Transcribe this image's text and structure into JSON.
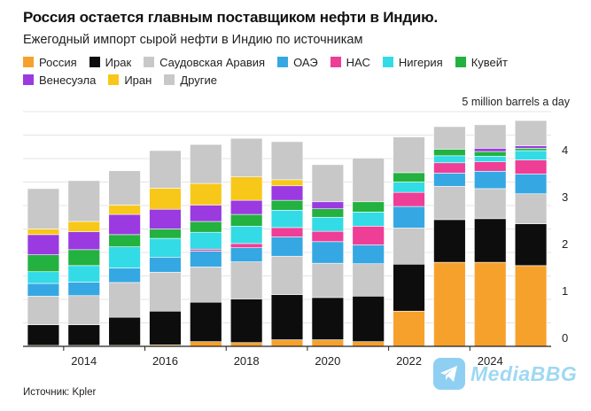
{
  "chart_data": {
    "type": "stacked_bar",
    "title": "Россия остается главным поставщиком нефти в Индию.",
    "subtitle": "Ежегодный импорт сырой нефти в Индию по источникам",
    "unit_label": "5 million barrels a day",
    "ylim": [
      0,
      5
    ],
    "yticks": [
      0,
      1,
      2,
      3,
      4
    ],
    "xticks": [
      "2014",
      "2016",
      "2018",
      "2020",
      "2022",
      "2024"
    ],
    "categories": [
      "2013",
      "2014",
      "2015",
      "2016",
      "2017",
      "2018",
      "2019",
      "2020",
      "2021",
      "2022",
      "2023",
      "2024",
      "2025"
    ],
    "series": [
      {
        "name": "Россия",
        "color": "#f7a12d",
        "values": [
          0.02,
          0.02,
          0.02,
          0.03,
          0.1,
          0.08,
          0.14,
          0.14,
          0.1,
          0.75,
          1.79,
          1.79,
          1.72
        ]
      },
      {
        "name": "Ирак",
        "color": "#0d0d0d",
        "values": [
          0.44,
          0.44,
          0.6,
          0.72,
          0.84,
          0.93,
          0.96,
          0.9,
          0.97,
          1.0,
          0.91,
          0.93,
          0.89
        ]
      },
      {
        "name": "Саудовская Аравия",
        "color": "#c8c8c8",
        "values": [
          0.61,
          0.62,
          0.74,
          0.83,
          0.75,
          0.79,
          0.82,
          0.73,
          0.69,
          0.77,
          0.71,
          0.64,
          0.64
        ]
      },
      {
        "name": "ОАЭ",
        "color": "#35a8e3",
        "values": [
          0.27,
          0.29,
          0.31,
          0.32,
          0.34,
          0.3,
          0.41,
          0.46,
          0.4,
          0.46,
          0.28,
          0.37,
          0.42
        ]
      },
      {
        "name": "НАС",
        "color": "#ee3e96",
        "values": [
          0.0,
          0.0,
          0.0,
          0.0,
          0.04,
          0.09,
          0.2,
          0.22,
          0.4,
          0.3,
          0.22,
          0.2,
          0.3
        ]
      },
      {
        "name": "Нигерия",
        "color": "#33dbe6",
        "values": [
          0.25,
          0.35,
          0.45,
          0.4,
          0.36,
          0.37,
          0.37,
          0.3,
          0.3,
          0.22,
          0.15,
          0.12,
          0.2
        ]
      },
      {
        "name": "Кувейт",
        "color": "#23b140",
        "values": [
          0.36,
          0.34,
          0.26,
          0.2,
          0.23,
          0.25,
          0.21,
          0.18,
          0.22,
          0.2,
          0.14,
          0.1,
          0.05
        ]
      },
      {
        "name": "Венесуэла",
        "color": "#9a3ae0",
        "values": [
          0.43,
          0.38,
          0.43,
          0.42,
          0.35,
          0.3,
          0.31,
          0.15,
          0.0,
          0.0,
          0.0,
          0.07,
          0.05
        ]
      },
      {
        "name": "Иран",
        "color": "#f7c81a",
        "values": [
          0.12,
          0.22,
          0.2,
          0.45,
          0.46,
          0.5,
          0.13,
          0.0,
          0.0,
          0.0,
          0.0,
          0.0,
          0.0
        ]
      },
      {
        "name": "Другие",
        "color": "#c8c8c8",
        "values": [
          0.86,
          0.87,
          0.73,
          0.8,
          0.83,
          0.82,
          0.81,
          0.79,
          0.93,
          0.76,
          0.48,
          0.5,
          0.54
        ]
      }
    ]
  },
  "source": "Источник: Kpler",
  "watermark": "MediaBBG"
}
